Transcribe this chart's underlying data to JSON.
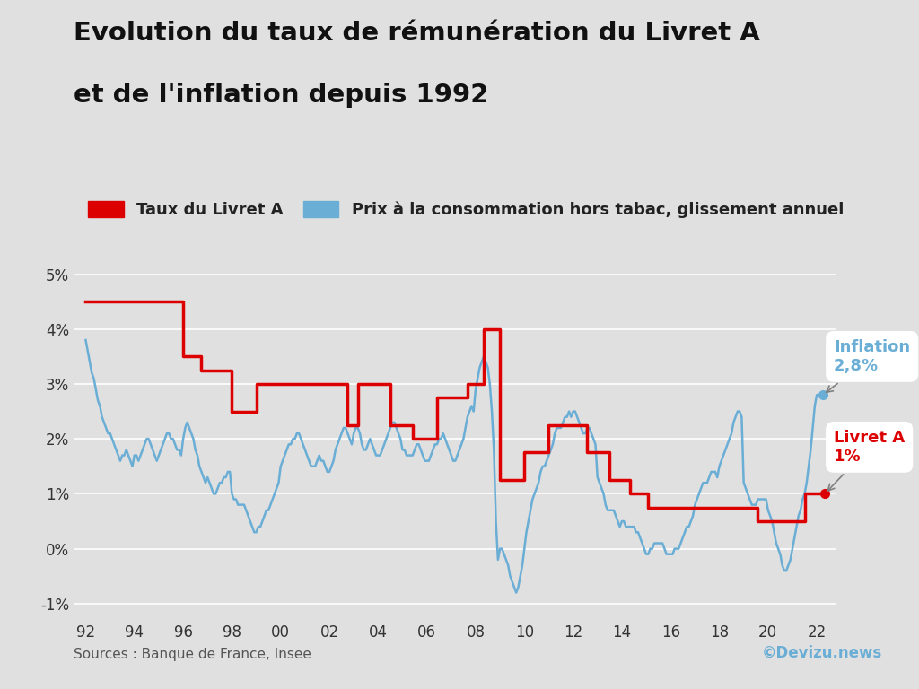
{
  "title_line1": "Evolution du taux de rémunération du Livret A",
  "title_line2": "et de l'inflation depuis 1992",
  "background_color": "#e0e0e0",
  "plot_bg_color": "#e0e0e0",
  "livret_a_color": "#dd0000",
  "inflation_color": "#6aaed6",
  "livret_a_label": "Taux du Livret A",
  "inflation_label": "Prix à la consommation hors tabac, glissement annuel",
  "source_text": "Sources : Banque de France, Insee",
  "copyright_text": "©Devizu.news",
  "ylim": [
    -1.3,
    5.6
  ],
  "yticks": [
    -1,
    0,
    1,
    2,
    3,
    4,
    5
  ],
  "ytick_labels": [
    "-1%",
    "0%",
    "1%",
    "2%",
    "3%",
    "4%",
    "5%"
  ],
  "xtick_positions": [
    1992,
    1994,
    1996,
    1998,
    2000,
    2002,
    2004,
    2006,
    2008,
    2010,
    2012,
    2014,
    2016,
    2018,
    2020,
    2022
  ],
  "xtick_labels": [
    "92",
    "94",
    "96",
    "98",
    "00",
    "02",
    "04",
    "06",
    "08",
    "10",
    "12",
    "14",
    "16",
    "18",
    "20",
    "22"
  ],
  "livret_a_data": [
    [
      1992.0,
      4.5
    ],
    [
      1996.0,
      4.5
    ],
    [
      1996.0,
      3.5
    ],
    [
      1996.75,
      3.5
    ],
    [
      1996.75,
      3.25
    ],
    [
      1998.0,
      3.25
    ],
    [
      1998.0,
      2.5
    ],
    [
      1999.0,
      2.5
    ],
    [
      1999.0,
      3.0
    ],
    [
      2000.5,
      3.0
    ],
    [
      2000.5,
      3.0
    ],
    [
      2002.75,
      3.0
    ],
    [
      2002.75,
      2.25
    ],
    [
      2003.17,
      2.25
    ],
    [
      2003.17,
      3.0
    ],
    [
      2004.5,
      3.0
    ],
    [
      2004.5,
      2.25
    ],
    [
      2005.42,
      2.25
    ],
    [
      2005.42,
      2.0
    ],
    [
      2006.42,
      2.0
    ],
    [
      2006.42,
      2.75
    ],
    [
      2007.67,
      2.75
    ],
    [
      2007.67,
      3.0
    ],
    [
      2008.33,
      3.0
    ],
    [
      2008.33,
      4.0
    ],
    [
      2009.0,
      4.0
    ],
    [
      2009.0,
      1.25
    ],
    [
      2010.0,
      1.25
    ],
    [
      2010.0,
      1.75
    ],
    [
      2011.0,
      1.75
    ],
    [
      2011.0,
      2.25
    ],
    [
      2012.0,
      2.25
    ],
    [
      2012.0,
      2.25
    ],
    [
      2012.58,
      2.25
    ],
    [
      2012.58,
      1.75
    ],
    [
      2013.5,
      1.75
    ],
    [
      2013.5,
      1.25
    ],
    [
      2014.33,
      1.25
    ],
    [
      2014.33,
      1.0
    ],
    [
      2015.08,
      1.0
    ],
    [
      2015.08,
      0.75
    ],
    [
      2019.58,
      0.75
    ],
    [
      2019.58,
      0.5
    ],
    [
      2020.42,
      0.5
    ],
    [
      2020.42,
      0.5
    ],
    [
      2021.5,
      0.5
    ],
    [
      2021.5,
      1.0
    ],
    [
      2022.33,
      1.0
    ]
  ],
  "inflation_data_years": [
    1992.0,
    1992.083,
    1992.167,
    1992.25,
    1992.333,
    1992.417,
    1992.5,
    1992.583,
    1992.667,
    1992.75,
    1992.833,
    1992.917,
    1993.0,
    1993.083,
    1993.167,
    1993.25,
    1993.333,
    1993.417,
    1993.5,
    1993.583,
    1993.667,
    1993.75,
    1993.833,
    1993.917,
    1994.0,
    1994.083,
    1994.167,
    1994.25,
    1994.333,
    1994.417,
    1994.5,
    1994.583,
    1994.667,
    1994.75,
    1994.833,
    1994.917,
    1995.0,
    1995.083,
    1995.167,
    1995.25,
    1995.333,
    1995.417,
    1995.5,
    1995.583,
    1995.667,
    1995.75,
    1995.833,
    1995.917,
    1996.0,
    1996.083,
    1996.167,
    1996.25,
    1996.333,
    1996.417,
    1996.5,
    1996.583,
    1996.667,
    1996.75,
    1996.833,
    1996.917,
    1997.0,
    1997.083,
    1997.167,
    1997.25,
    1997.333,
    1997.417,
    1997.5,
    1997.583,
    1997.667,
    1997.75,
    1997.833,
    1997.917,
    1998.0,
    1998.083,
    1998.167,
    1998.25,
    1998.333,
    1998.417,
    1998.5,
    1998.583,
    1998.667,
    1998.75,
    1998.833,
    1998.917,
    1999.0,
    1999.083,
    1999.167,
    1999.25,
    1999.333,
    1999.417,
    1999.5,
    1999.583,
    1999.667,
    1999.75,
    1999.833,
    1999.917,
    2000.0,
    2000.083,
    2000.167,
    2000.25,
    2000.333,
    2000.417,
    2000.5,
    2000.583,
    2000.667,
    2000.75,
    2000.833,
    2000.917,
    2001.0,
    2001.083,
    2001.167,
    2001.25,
    2001.333,
    2001.417,
    2001.5,
    2001.583,
    2001.667,
    2001.75,
    2001.833,
    2001.917,
    2002.0,
    2002.083,
    2002.167,
    2002.25,
    2002.333,
    2002.417,
    2002.5,
    2002.583,
    2002.667,
    2002.75,
    2002.833,
    2002.917,
    2003.0,
    2003.083,
    2003.167,
    2003.25,
    2003.333,
    2003.417,
    2003.5,
    2003.583,
    2003.667,
    2003.75,
    2003.833,
    2003.917,
    2004.0,
    2004.083,
    2004.167,
    2004.25,
    2004.333,
    2004.417,
    2004.5,
    2004.583,
    2004.667,
    2004.75,
    2004.833,
    2004.917,
    2005.0,
    2005.083,
    2005.167,
    2005.25,
    2005.333,
    2005.417,
    2005.5,
    2005.583,
    2005.667,
    2005.75,
    2005.833,
    2005.917,
    2006.0,
    2006.083,
    2006.167,
    2006.25,
    2006.333,
    2006.417,
    2006.5,
    2006.583,
    2006.667,
    2006.75,
    2006.833,
    2006.917,
    2007.0,
    2007.083,
    2007.167,
    2007.25,
    2007.333,
    2007.417,
    2007.5,
    2007.583,
    2007.667,
    2007.75,
    2007.833,
    2007.917,
    2008.0,
    2008.083,
    2008.167,
    2008.25,
    2008.333,
    2008.417,
    2008.5,
    2008.583,
    2008.667,
    2008.75,
    2008.833,
    2008.917,
    2009.0,
    2009.083,
    2009.167,
    2009.25,
    2009.333,
    2009.417,
    2009.5,
    2009.583,
    2009.667,
    2009.75,
    2009.833,
    2009.917,
    2010.0,
    2010.083,
    2010.167,
    2010.25,
    2010.333,
    2010.417,
    2010.5,
    2010.583,
    2010.667,
    2010.75,
    2010.833,
    2010.917,
    2011.0,
    2011.083,
    2011.167,
    2011.25,
    2011.333,
    2011.417,
    2011.5,
    2011.583,
    2011.667,
    2011.75,
    2011.833,
    2011.917,
    2012.0,
    2012.083,
    2012.167,
    2012.25,
    2012.333,
    2012.417,
    2012.5,
    2012.583,
    2012.667,
    2012.75,
    2012.833,
    2012.917,
    2013.0,
    2013.083,
    2013.167,
    2013.25,
    2013.333,
    2013.417,
    2013.5,
    2013.583,
    2013.667,
    2013.75,
    2013.833,
    2013.917,
    2014.0,
    2014.083,
    2014.167,
    2014.25,
    2014.333,
    2014.417,
    2014.5,
    2014.583,
    2014.667,
    2014.75,
    2014.833,
    2014.917,
    2015.0,
    2015.083,
    2015.167,
    2015.25,
    2015.333,
    2015.417,
    2015.5,
    2015.583,
    2015.667,
    2015.75,
    2015.833,
    2015.917,
    2016.0,
    2016.083,
    2016.167,
    2016.25,
    2016.333,
    2016.417,
    2016.5,
    2016.583,
    2016.667,
    2016.75,
    2016.833,
    2016.917,
    2017.0,
    2017.083,
    2017.167,
    2017.25,
    2017.333,
    2017.417,
    2017.5,
    2017.583,
    2017.667,
    2017.75,
    2017.833,
    2017.917,
    2018.0,
    2018.083,
    2018.167,
    2018.25,
    2018.333,
    2018.417,
    2018.5,
    2018.583,
    2018.667,
    2018.75,
    2018.833,
    2018.917,
    2019.0,
    2019.083,
    2019.167,
    2019.25,
    2019.333,
    2019.417,
    2019.5,
    2019.583,
    2019.667,
    2019.75,
    2019.833,
    2019.917,
    2020.0,
    2020.083,
    2020.167,
    2020.25,
    2020.333,
    2020.417,
    2020.5,
    2020.583,
    2020.667,
    2020.75,
    2020.833,
    2020.917,
    2021.0,
    2021.083,
    2021.167,
    2021.25,
    2021.333,
    2021.417,
    2021.5,
    2021.583,
    2021.667,
    2021.75,
    2021.833,
    2021.917,
    2022.0,
    2022.083,
    2022.167,
    2022.25
  ],
  "inflation_data_values": [
    3.8,
    3.6,
    3.4,
    3.2,
    3.1,
    2.9,
    2.7,
    2.6,
    2.4,
    2.3,
    2.2,
    2.1,
    2.1,
    2.0,
    1.9,
    1.8,
    1.7,
    1.6,
    1.7,
    1.7,
    1.8,
    1.7,
    1.6,
    1.5,
    1.7,
    1.7,
    1.6,
    1.7,
    1.8,
    1.9,
    2.0,
    2.0,
    1.9,
    1.8,
    1.7,
    1.6,
    1.7,
    1.8,
    1.9,
    2.0,
    2.1,
    2.1,
    2.0,
    2.0,
    1.9,
    1.8,
    1.8,
    1.7,
    2.0,
    2.2,
    2.3,
    2.2,
    2.1,
    2.0,
    1.8,
    1.7,
    1.5,
    1.4,
    1.3,
    1.2,
    1.3,
    1.2,
    1.1,
    1.0,
    1.0,
    1.1,
    1.2,
    1.2,
    1.3,
    1.3,
    1.4,
    1.4,
    1.0,
    0.9,
    0.9,
    0.8,
    0.8,
    0.8,
    0.8,
    0.7,
    0.6,
    0.5,
    0.4,
    0.3,
    0.3,
    0.4,
    0.4,
    0.5,
    0.6,
    0.7,
    0.7,
    0.8,
    0.9,
    1.0,
    1.1,
    1.2,
    1.5,
    1.6,
    1.7,
    1.8,
    1.9,
    1.9,
    2.0,
    2.0,
    2.1,
    2.1,
    2.0,
    1.9,
    1.8,
    1.7,
    1.6,
    1.5,
    1.5,
    1.5,
    1.6,
    1.7,
    1.6,
    1.6,
    1.5,
    1.4,
    1.4,
    1.5,
    1.6,
    1.8,
    1.9,
    2.0,
    2.1,
    2.2,
    2.2,
    2.1,
    2.0,
    1.9,
    2.1,
    2.2,
    2.2,
    2.1,
    1.9,
    1.8,
    1.8,
    1.9,
    2.0,
    1.9,
    1.8,
    1.7,
    1.7,
    1.7,
    1.8,
    1.9,
    2.0,
    2.1,
    2.2,
    2.3,
    2.3,
    2.2,
    2.1,
    2.0,
    1.8,
    1.8,
    1.7,
    1.7,
    1.7,
    1.7,
    1.8,
    1.9,
    1.9,
    1.8,
    1.7,
    1.6,
    1.6,
    1.6,
    1.7,
    1.8,
    1.9,
    1.9,
    2.0,
    2.0,
    2.1,
    2.0,
    1.9,
    1.8,
    1.7,
    1.6,
    1.6,
    1.7,
    1.8,
    1.9,
    2.0,
    2.2,
    2.4,
    2.5,
    2.6,
    2.5,
    2.9,
    3.1,
    3.3,
    3.4,
    3.5,
    3.4,
    3.3,
    3.0,
    2.5,
    1.8,
    0.5,
    -0.2,
    0.0,
    0.0,
    -0.1,
    -0.2,
    -0.3,
    -0.5,
    -0.6,
    -0.7,
    -0.8,
    -0.7,
    -0.5,
    -0.3,
    0.0,
    0.3,
    0.5,
    0.7,
    0.9,
    1.0,
    1.1,
    1.2,
    1.4,
    1.5,
    1.5,
    1.6,
    1.7,
    1.8,
    1.9,
    2.1,
    2.2,
    2.2,
    2.2,
    2.3,
    2.4,
    2.4,
    2.5,
    2.4,
    2.5,
    2.5,
    2.4,
    2.3,
    2.2,
    2.1,
    2.1,
    2.2,
    2.2,
    2.1,
    2.0,
    1.9,
    1.3,
    1.2,
    1.1,
    1.0,
    0.8,
    0.7,
    0.7,
    0.7,
    0.7,
    0.6,
    0.5,
    0.4,
    0.5,
    0.5,
    0.4,
    0.4,
    0.4,
    0.4,
    0.4,
    0.3,
    0.3,
    0.2,
    0.1,
    0.0,
    -0.1,
    -0.1,
    0.0,
    0.0,
    0.1,
    0.1,
    0.1,
    0.1,
    0.1,
    0.0,
    -0.1,
    -0.1,
    -0.1,
    -0.1,
    0.0,
    0.0,
    0.0,
    0.1,
    0.2,
    0.3,
    0.4,
    0.4,
    0.5,
    0.6,
    0.8,
    0.9,
    1.0,
    1.1,
    1.2,
    1.2,
    1.2,
    1.3,
    1.4,
    1.4,
    1.4,
    1.3,
    1.5,
    1.6,
    1.7,
    1.8,
    1.9,
    2.0,
    2.1,
    2.3,
    2.4,
    2.5,
    2.5,
    2.4,
    1.2,
    1.1,
    1.0,
    0.9,
    0.8,
    0.8,
    0.8,
    0.9,
    0.9,
    0.9,
    0.9,
    0.9,
    0.7,
    0.6,
    0.5,
    0.3,
    0.1,
    0.0,
    -0.1,
    -0.3,
    -0.4,
    -0.4,
    -0.3,
    -0.2,
    0.0,
    0.2,
    0.4,
    0.6,
    0.7,
    0.9,
    1.0,
    1.2,
    1.5,
    1.8,
    2.2,
    2.6,
    2.8,
    2.8,
    2.8,
    2.8
  ]
}
